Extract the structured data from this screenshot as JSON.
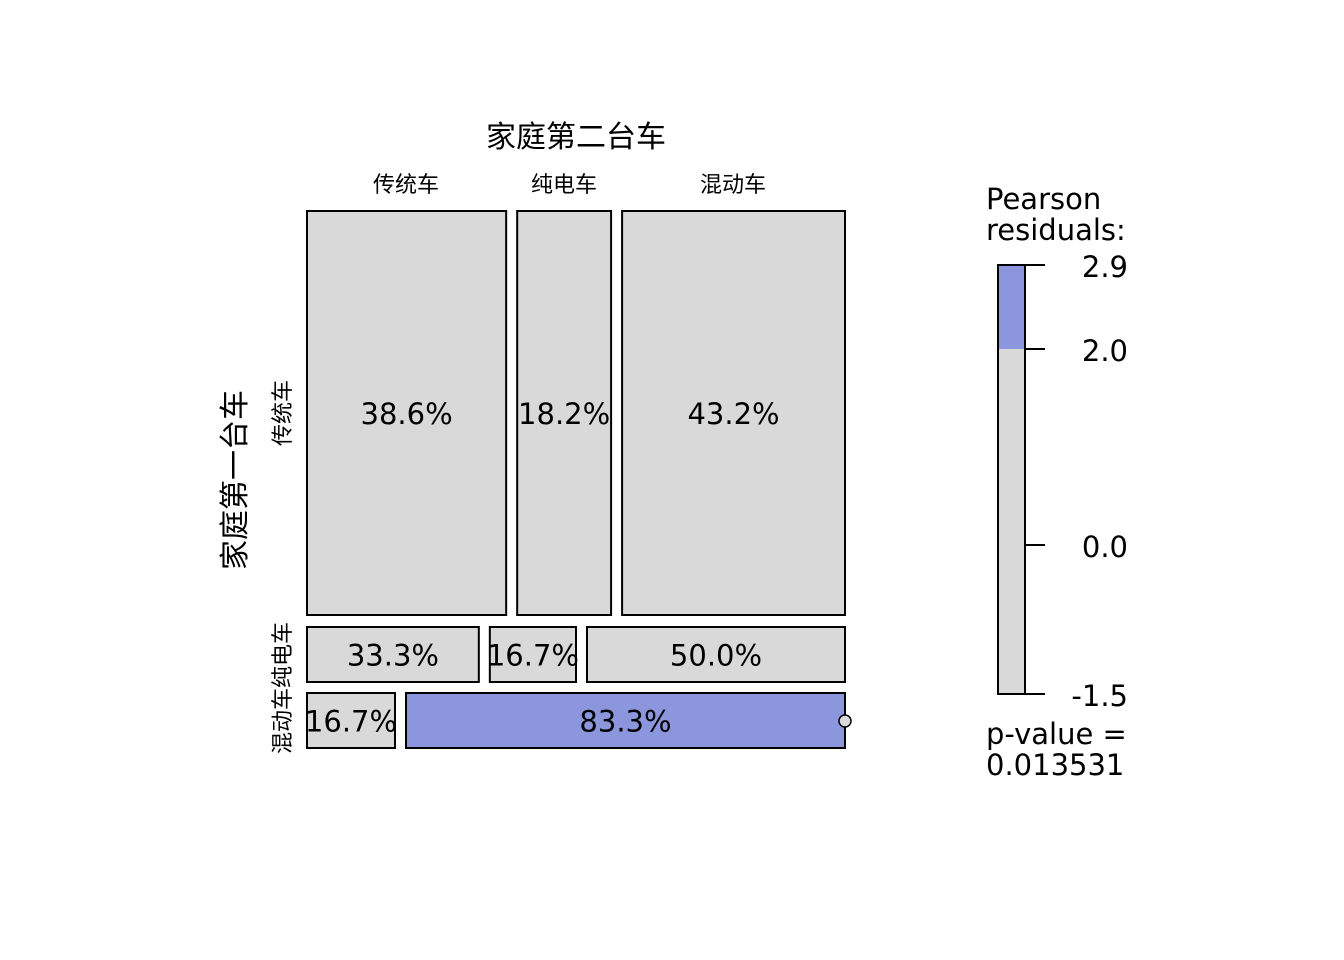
{
  "chart_data": {
    "type": "mosaic",
    "title": "家庭第二台车",
    "ylabel": "家庭第一台车",
    "col_categories": [
      "传统车",
      "纯电车",
      "混动车"
    ],
    "row_categories": [
      "传统车",
      "纯电车",
      "混动车"
    ],
    "cells": [
      {
        "row": "传统车",
        "col": "传统车",
        "label": "38.6%",
        "value": 38.6,
        "residual_band": "mid"
      },
      {
        "row": "传统车",
        "col": "纯电车",
        "label": "18.2%",
        "value": 18.2,
        "residual_band": "mid"
      },
      {
        "row": "传统车",
        "col": "混动车",
        "label": "43.2%",
        "value": 43.2,
        "residual_band": "mid"
      },
      {
        "row": "纯电车",
        "col": "传统车",
        "label": "33.3%",
        "value": 33.3,
        "residual_band": "mid"
      },
      {
        "row": "纯电车",
        "col": "纯电车",
        "label": "16.7%",
        "value": 16.7,
        "residual_band": "mid"
      },
      {
        "row": "纯电车",
        "col": "混动车",
        "label": "50.0%",
        "value": 50.0,
        "residual_band": "mid"
      },
      {
        "row": "混动车",
        "col": "传统车",
        "label": "16.7%",
        "value": 16.7,
        "residual_band": "mid"
      },
      {
        "row": "混动车",
        "col": "纯电车",
        "label": "",
        "value": 0.0,
        "residual_band": "mid"
      },
      {
        "row": "混动车",
        "col": "混动车",
        "label": "83.3%",
        "value": 83.3,
        "residual_band": "high"
      }
    ],
    "legend": {
      "title_lines": [
        "Pearson",
        "residuals:"
      ],
      "ticks": [
        "2.9",
        "2.0",
        "0.0",
        "-1.5"
      ],
      "range": [
        -1.5,
        2.9
      ],
      "pvalue_lines": [
        "p-value =",
        "0.013531"
      ],
      "placement": "right"
    },
    "colors": {
      "neutral": "#d9d9d9",
      "high": "#8c96dc",
      "border": "#000000"
    }
  }
}
